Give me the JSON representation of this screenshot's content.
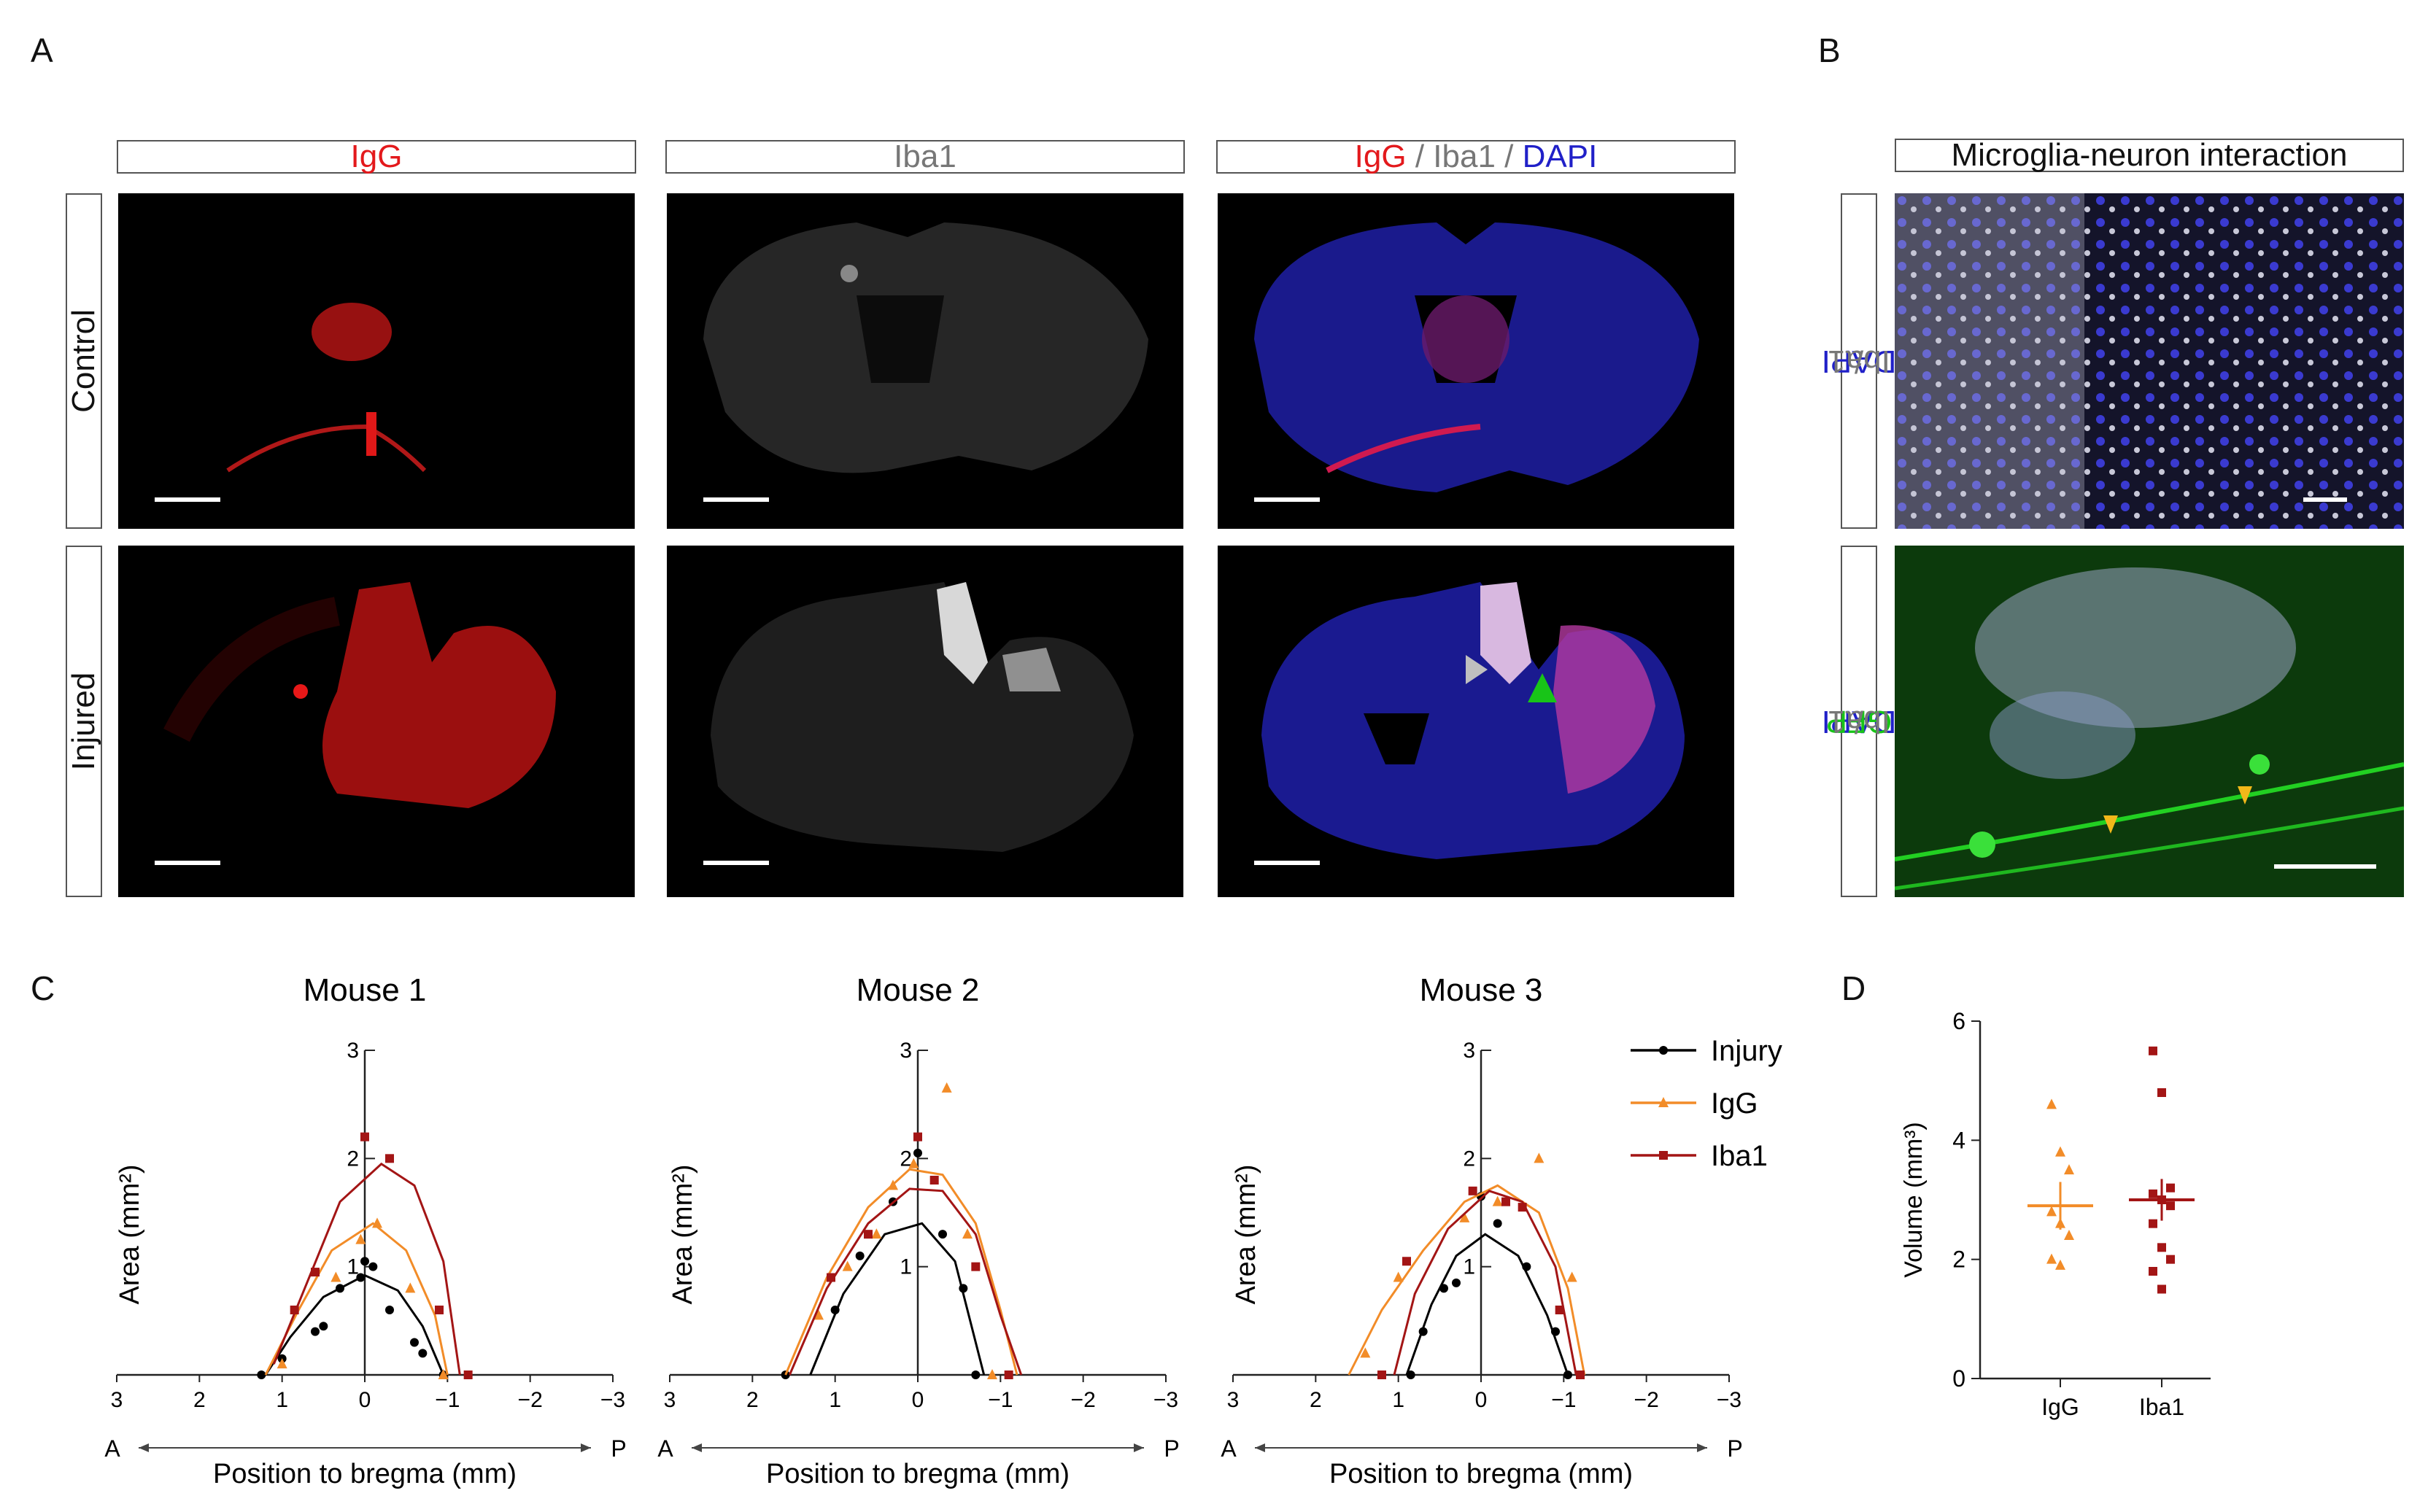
{
  "panel_labels": {
    "a": "A",
    "b": "B",
    "c": "C",
    "d": "D"
  },
  "panel_a": {
    "column_headers": {
      "igg": "IgG",
      "iba1": "Iba1",
      "merge": {
        "part1": "IgG",
        "sep1": " / ",
        "part2": "Iba1",
        "sep2": " / ",
        "part3": "DAPI"
      }
    },
    "row_labels": {
      "control": "Control",
      "injured": "Injured"
    }
  },
  "panel_b": {
    "header": "Microglia-neuron interaction",
    "row_label_top": {
      "part1": "DAPI",
      "sep": " / ",
      "part2": "Iba1"
    },
    "row_label_bottom": {
      "part1": "DAPI",
      "sep1": " / ",
      "part2": "GFP",
      "sep2": " / ",
      "part3": "Iba1"
    }
  },
  "colors": {
    "injury": "#000000",
    "igg": "#f28c28",
    "iba1": "#a31515",
    "red_channel": "#e3191c",
    "blue_channel": "#2020c8",
    "green_channel": "#18c418"
  },
  "chart_data": [
    {
      "type": "scatter",
      "title": "Mouse 1",
      "ylabel": "Area (mm²)",
      "xlabel": "Position to bregma (mm)",
      "x_direction": {
        "left": "A",
        "right": "P"
      },
      "xlim": [
        3,
        -3
      ],
      "ylim": [
        0,
        3
      ],
      "xticks": [
        "3",
        "2",
        "1",
        "0",
        "−1",
        "−2",
        "−3"
      ],
      "yticks": [
        "1",
        "2",
        "3"
      ],
      "series": [
        {
          "name": "Injury",
          "points": [
            [
              1.25,
              0.0
            ],
            [
              1.0,
              0.15
            ],
            [
              0.6,
              0.4
            ],
            [
              0.5,
              0.45
            ],
            [
              0.3,
              0.8
            ],
            [
              0.05,
              0.9
            ],
            [
              0.0,
              1.05
            ],
            [
              -0.1,
              1.0
            ],
            [
              -0.3,
              0.6
            ],
            [
              -0.6,
              0.3
            ],
            [
              -0.7,
              0.2
            ],
            [
              -0.95,
              0.0
            ]
          ],
          "fit": [
            [
              1.2,
              0.0
            ],
            [
              0.9,
              0.35
            ],
            [
              0.5,
              0.72
            ],
            [
              0.0,
              0.92
            ],
            [
              -0.4,
              0.78
            ],
            [
              -0.7,
              0.45
            ],
            [
              -0.95,
              0.0
            ]
          ]
        },
        {
          "name": "IgG",
          "points": [
            [
              1.0,
              0.1
            ],
            [
              0.35,
              0.9
            ],
            [
              0.05,
              1.25
            ],
            [
              -0.15,
              1.4
            ],
            [
              -0.55,
              0.8
            ],
            [
              -0.95,
              0.0
            ]
          ],
          "fit": [
            [
              1.2,
              0.0
            ],
            [
              0.8,
              0.6
            ],
            [
              0.4,
              1.15
            ],
            [
              -0.1,
              1.4
            ],
            [
              -0.5,
              1.15
            ],
            [
              -0.85,
              0.55
            ],
            [
              -1.0,
              0.0
            ]
          ]
        },
        {
          "name": "Iba1",
          "points": [
            [
              0.85,
              0.6
            ],
            [
              0.6,
              0.95
            ],
            [
              0.0,
              2.2
            ],
            [
              -0.3,
              2.0
            ],
            [
              -0.9,
              0.6
            ],
            [
              -1.25,
              0.0
            ]
          ],
          "fit": [
            [
              1.1,
              0.1
            ],
            [
              0.7,
              0.85
            ],
            [
              0.3,
              1.6
            ],
            [
              -0.2,
              1.95
            ],
            [
              -0.6,
              1.75
            ],
            [
              -0.95,
              1.05
            ],
            [
              -1.15,
              0.0
            ]
          ]
        }
      ]
    },
    {
      "type": "scatter",
      "title": "Mouse 2",
      "ylabel": "Area (mm²)",
      "xlabel": "Position to bregma (mm)",
      "x_direction": {
        "left": "A",
        "right": "P"
      },
      "xlim": [
        3,
        -3
      ],
      "ylim": [
        0,
        3
      ],
      "xticks": [
        "3",
        "2",
        "1",
        "0",
        "−1",
        "−2",
        "−3"
      ],
      "yticks": [
        "1",
        "2",
        "3"
      ],
      "series": [
        {
          "name": "Injury",
          "points": [
            [
              1.6,
              0.0
            ],
            [
              1.0,
              0.6
            ],
            [
              0.7,
              1.1
            ],
            [
              0.3,
              1.6
            ],
            [
              0.0,
              2.05
            ],
            [
              -0.3,
              1.3
            ],
            [
              -0.55,
              0.8
            ],
            [
              -0.7,
              0.0
            ]
          ],
          "fit": [
            [
              1.3,
              0.0
            ],
            [
              0.9,
              0.75
            ],
            [
              0.4,
              1.3
            ],
            [
              -0.05,
              1.4
            ],
            [
              -0.45,
              1.05
            ],
            [
              -0.8,
              0.0
            ]
          ]
        },
        {
          "name": "IgG",
          "points": [
            [
              1.2,
              0.55
            ],
            [
              0.85,
              1.0
            ],
            [
              0.5,
              1.3
            ],
            [
              0.3,
              1.75
            ],
            [
              0.05,
              1.95
            ],
            [
              -0.35,
              2.65
            ],
            [
              -0.6,
              1.3
            ],
            [
              -0.9,
              0.0
            ]
          ],
          "fit": [
            [
              1.6,
              0.0
            ],
            [
              1.1,
              0.9
            ],
            [
              0.6,
              1.55
            ],
            [
              0.1,
              1.9
            ],
            [
              -0.3,
              1.85
            ],
            [
              -0.7,
              1.4
            ],
            [
              -1.0,
              0.6
            ],
            [
              -1.2,
              0.0
            ]
          ]
        },
        {
          "name": "Iba1",
          "points": [
            [
              1.05,
              0.9
            ],
            [
              0.6,
              1.3
            ],
            [
              0.0,
              2.2
            ],
            [
              -0.2,
              1.8
            ],
            [
              -0.7,
              1.0
            ],
            [
              -1.1,
              0.0
            ]
          ],
          "fit": [
            [
              1.55,
              0.0
            ],
            [
              1.1,
              0.8
            ],
            [
              0.6,
              1.4
            ],
            [
              0.1,
              1.72
            ],
            [
              -0.3,
              1.7
            ],
            [
              -0.7,
              1.3
            ],
            [
              -1.0,
              0.55
            ],
            [
              -1.25,
              0.0
            ]
          ]
        }
      ]
    },
    {
      "type": "scatter",
      "title": "Mouse 3",
      "ylabel": "Area (mm²)",
      "xlabel": "Position to bregma (mm)",
      "x_direction": {
        "left": "A",
        "right": "P"
      },
      "xlim": [
        3,
        -3
      ],
      "ylim": [
        0,
        3
      ],
      "xticks": [
        "3",
        "2",
        "1",
        "0",
        "−1",
        "−2",
        "−3"
      ],
      "yticks": [
        "1",
        "2",
        "3"
      ],
      "series": [
        {
          "name": "Injury",
          "points": [
            [
              0.85,
              0.0
            ],
            [
              0.7,
              0.4
            ],
            [
              0.45,
              0.8
            ],
            [
              0.3,
              0.85
            ],
            [
              0.0,
              1.65
            ],
            [
              -0.2,
              1.4
            ],
            [
              -0.55,
              1.0
            ],
            [
              -0.9,
              0.4
            ],
            [
              -1.05,
              0.0
            ]
          ],
          "fit": [
            [
              0.9,
              0.0
            ],
            [
              0.6,
              0.65
            ],
            [
              0.3,
              1.1
            ],
            [
              -0.05,
              1.3
            ],
            [
              -0.45,
              1.1
            ],
            [
              -0.8,
              0.55
            ],
            [
              -1.05,
              0.0
            ]
          ]
        },
        {
          "name": "IgG",
          "points": [
            [
              1.4,
              0.2
            ],
            [
              1.0,
              0.9
            ],
            [
              0.2,
              1.45
            ],
            [
              -0.2,
              1.6
            ],
            [
              -0.7,
              2.0
            ],
            [
              -1.1,
              0.9
            ]
          ],
          "fit": [
            [
              1.6,
              0.0
            ],
            [
              1.2,
              0.6
            ],
            [
              0.7,
              1.15
            ],
            [
              0.2,
              1.6
            ],
            [
              -0.2,
              1.75
            ],
            [
              -0.7,
              1.5
            ],
            [
              -1.05,
              0.8
            ],
            [
              -1.25,
              0.0
            ]
          ]
        },
        {
          "name": "Iba1",
          "points": [
            [
              1.2,
              0.0
            ],
            [
              0.9,
              1.05
            ],
            [
              0.1,
              1.7
            ],
            [
              -0.3,
              1.6
            ],
            [
              -0.5,
              1.55
            ],
            [
              -0.95,
              0.6
            ],
            [
              -1.2,
              0.0
            ]
          ],
          "fit": [
            [
              1.05,
              0.0
            ],
            [
              0.8,
              0.75
            ],
            [
              0.4,
              1.35
            ],
            [
              -0.1,
              1.7
            ],
            [
              -0.5,
              1.6
            ],
            [
              -0.9,
              1.0
            ],
            [
              -1.15,
              0.0
            ]
          ]
        }
      ]
    },
    {
      "type": "scatter",
      "ylabel": "Volume (mm³)",
      "ylim": [
        0,
        6
      ],
      "yticks": [
        "0",
        "2",
        "4",
        "6"
      ],
      "categories": [
        "IgG",
        "Iba1"
      ],
      "series": [
        {
          "name": "IgG",
          "values": [
            4.6,
            3.8,
            3.5,
            2.8,
            2.6,
            2.4,
            2.0,
            1.9
          ],
          "mean": 2.9,
          "sem": 0.4
        },
        {
          "name": "Iba1",
          "values": [
            5.5,
            4.8,
            3.2,
            3.1,
            3.0,
            2.9,
            2.6,
            2.2,
            2.0,
            1.8,
            1.5
          ],
          "mean": 3.0,
          "sem": 0.35
        }
      ]
    }
  ],
  "legend": {
    "items": [
      "Injury",
      "IgG",
      "Iba1"
    ]
  }
}
